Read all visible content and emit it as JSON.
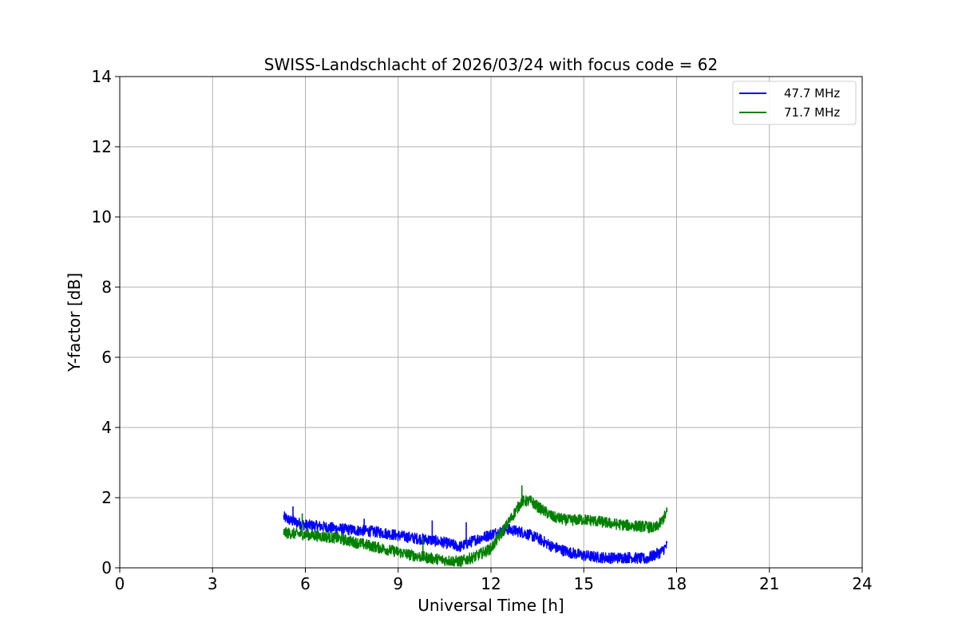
{
  "chart_data": {
    "type": "line",
    "title": "SWISS-Landschlacht of 2026/03/24 with focus code = 62",
    "xlabel": "Universal Time [h]",
    "ylabel": "Y-factor [dB]",
    "xlim": [
      0,
      24
    ],
    "ylim": [
      0,
      14
    ],
    "xticks": [
      "0",
      "3",
      "6",
      "9",
      "12",
      "15",
      "18",
      "21",
      "24"
    ],
    "yticks": [
      "0",
      "2",
      "4",
      "6",
      "8",
      "10",
      "12",
      "14"
    ],
    "grid": true,
    "legend_position": "top-right",
    "series": [
      {
        "name": "47.7 MHz",
        "color": "#0000ff",
        "x": [
          5.3,
          5.5,
          6.0,
          6.5,
          7.0,
          7.5,
          8.0,
          8.5,
          9.0,
          9.5,
          10.0,
          10.5,
          11.0,
          11.5,
          12.0,
          12.5,
          13.0,
          13.5,
          14.0,
          14.5,
          15.0,
          15.5,
          16.0,
          16.5,
          17.0,
          17.5,
          17.7
        ],
        "values": [
          1.45,
          1.35,
          1.22,
          1.18,
          1.12,
          1.08,
          1.05,
          1.0,
          0.92,
          0.85,
          0.8,
          0.72,
          0.6,
          0.8,
          0.95,
          1.1,
          1.02,
          0.85,
          0.6,
          0.45,
          0.35,
          0.3,
          0.28,
          0.3,
          0.25,
          0.45,
          0.65
        ],
        "spikes": [
          [
            5.6,
            1.75
          ],
          [
            7.9,
            1.4
          ],
          [
            10.1,
            1.35
          ],
          [
            11.2,
            1.3
          ]
        ]
      },
      {
        "name": "71.7 MHz",
        "color": "#008000",
        "x": [
          5.3,
          6.0,
          6.5,
          7.0,
          7.5,
          8.0,
          8.5,
          9.0,
          9.5,
          10.0,
          10.5,
          11.0,
          11.5,
          12.0,
          12.5,
          13.0,
          13.3,
          13.5,
          14.0,
          14.5,
          15.0,
          15.5,
          16.0,
          16.5,
          17.0,
          17.3,
          17.5,
          17.7
        ],
        "values": [
          1.0,
          0.95,
          0.9,
          0.85,
          0.75,
          0.65,
          0.55,
          0.45,
          0.35,
          0.28,
          0.22,
          0.18,
          0.32,
          0.55,
          1.2,
          1.9,
          1.9,
          1.75,
          1.45,
          1.35,
          1.38,
          1.32,
          1.25,
          1.2,
          1.18,
          1.12,
          1.3,
          1.6
        ],
        "spikes": [
          [
            5.9,
            1.55
          ],
          [
            9.8,
            0.85
          ],
          [
            13.0,
            2.35
          ]
        ]
      }
    ]
  }
}
